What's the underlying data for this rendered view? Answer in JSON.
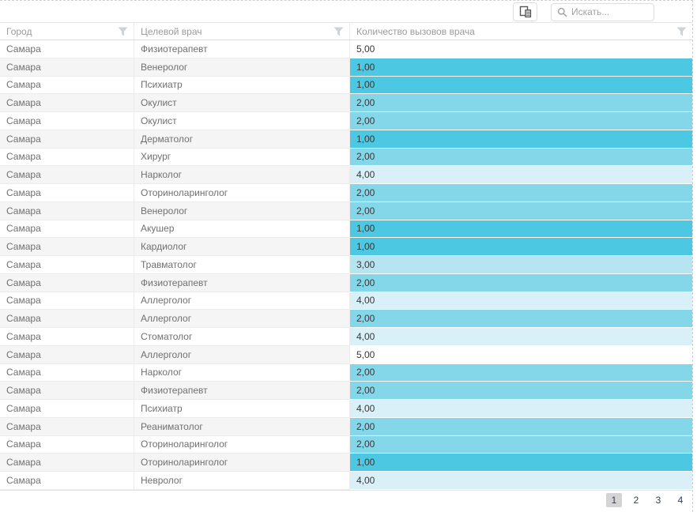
{
  "toolbar": {
    "search": {
      "placeholder": "Искать..."
    },
    "column_chooser_icon": "column-chooser-icon",
    "search_icon": "magnifier-icon"
  },
  "grid": {
    "columns": [
      {
        "label": "Город"
      },
      {
        "label": "Целевой врач"
      },
      {
        "label": "Количество вызовов врача"
      }
    ],
    "filter_icon": "funnel-icon",
    "rows": [
      {
        "city": "Самара",
        "doctor": "Физиотерапевт",
        "calls": "5,00",
        "heat": "5"
      },
      {
        "city": "Самара",
        "doctor": "Венеролог",
        "calls": "1,00",
        "heat": "1"
      },
      {
        "city": "Самара",
        "doctor": "Психиатр",
        "calls": "1,00",
        "heat": "1"
      },
      {
        "city": "Самара",
        "doctor": "Окулист",
        "calls": "2,00",
        "heat": "2"
      },
      {
        "city": "Самара",
        "doctor": "Окулист",
        "calls": "2,00",
        "heat": "2"
      },
      {
        "city": "Самара",
        "doctor": "Дерматолог",
        "calls": "1,00",
        "heat": "1"
      },
      {
        "city": "Самара",
        "doctor": "Хирург",
        "calls": "2,00",
        "heat": "2"
      },
      {
        "city": "Самара",
        "doctor": "Нарколог",
        "calls": "4,00",
        "heat": "4"
      },
      {
        "city": "Самара",
        "doctor": "Оториноларинголог",
        "calls": "2,00",
        "heat": "2"
      },
      {
        "city": "Самара",
        "doctor": "Венеролог",
        "calls": "2,00",
        "heat": "2"
      },
      {
        "city": "Самара",
        "doctor": "Акушер",
        "calls": "1,00",
        "heat": "1"
      },
      {
        "city": "Самара",
        "doctor": "Кардиолог",
        "calls": "1,00",
        "heat": "1"
      },
      {
        "city": "Самара",
        "doctor": "Травматолог",
        "calls": "3,00",
        "heat": "3"
      },
      {
        "city": "Самара",
        "doctor": "Физиотерапевт",
        "calls": "2,00",
        "heat": "2"
      },
      {
        "city": "Самара",
        "doctor": "Аллерголог",
        "calls": "4,00",
        "heat": "4"
      },
      {
        "city": "Самара",
        "doctor": "Аллерголог",
        "calls": "2,00",
        "heat": "2"
      },
      {
        "city": "Самара",
        "doctor": "Стоматолог",
        "calls": "4,00",
        "heat": "4"
      },
      {
        "city": "Самара",
        "doctor": "Аллерголог",
        "calls": "5,00",
        "heat": "5"
      },
      {
        "city": "Самара",
        "doctor": "Нарколог",
        "calls": "2,00",
        "heat": "2"
      },
      {
        "city": "Самара",
        "doctor": "Физиотерапевт",
        "calls": "2,00",
        "heat": "2"
      },
      {
        "city": "Самара",
        "doctor": "Психиатр",
        "calls": "4,00",
        "heat": "4"
      },
      {
        "city": "Самара",
        "doctor": "Реаниматолог",
        "calls": "2,00",
        "heat": "2"
      },
      {
        "city": "Самара",
        "doctor": "Оториноларинголог",
        "calls": "2,00",
        "heat": "2"
      },
      {
        "city": "Самара",
        "doctor": "Оториноларинголог",
        "calls": "1,00",
        "heat": "1"
      },
      {
        "city": "Самара",
        "doctor": "Невролог",
        "calls": "4,00",
        "heat": "4"
      }
    ]
  },
  "pager": {
    "pages": [
      "1",
      "2",
      "3",
      "4"
    ],
    "current": "1"
  },
  "colors": {
    "heat": {
      "1": "#4cc8e2",
      "2": "#84d7e9",
      "3": "#b6e5f1",
      "4": "#daf0f8",
      "5": "#ffffff"
    },
    "stripe": "#f5f5f5",
    "header_text": "#9b9b9b",
    "pager_selected_bg": "#d4d4d4"
  }
}
